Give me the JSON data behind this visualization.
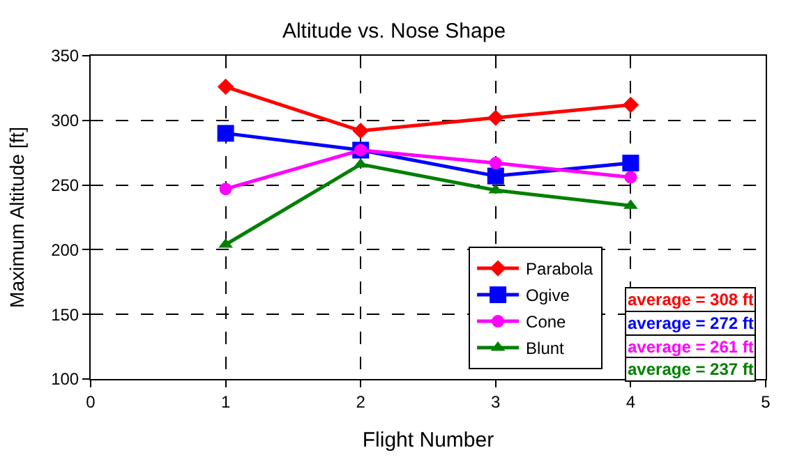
{
  "chart_data": {
    "type": "line",
    "title": "Altitude vs. Nose Shape",
    "xlabel": "Flight Number",
    "ylabel": "Maximum Altitude [ft]",
    "x": [
      1,
      2,
      3,
      4
    ],
    "series": [
      {
        "name": "Parabola",
        "color": "#ff0000",
        "marker": "diamond",
        "values": [
          326,
          292,
          302,
          312
        ]
      },
      {
        "name": "Ogive",
        "color": "#0000ff",
        "marker": "square",
        "values": [
          290,
          277,
          257,
          267
        ]
      },
      {
        "name": "Cone",
        "color": "#ff00ff",
        "marker": "circle",
        "values": [
          247,
          277,
          267,
          256
        ]
      },
      {
        "name": "Blunt",
        "color": "#008000",
        "marker": "triangle",
        "values": [
          204,
          266,
          246,
          234
        ]
      }
    ],
    "annotations": [
      "average = 308 ft",
      "average = 272 ft",
      "average = 261 ft",
      "average = 237 ft"
    ],
    "xlim": [
      0,
      5
    ],
    "xticks": [
      0,
      1,
      2,
      3,
      4,
      5
    ],
    "ylim": [
      100,
      350
    ],
    "yticks": [
      100,
      150,
      200,
      250,
      300,
      350
    ],
    "grid": true,
    "legend": "bottom right",
    "line_style": "solid"
  }
}
